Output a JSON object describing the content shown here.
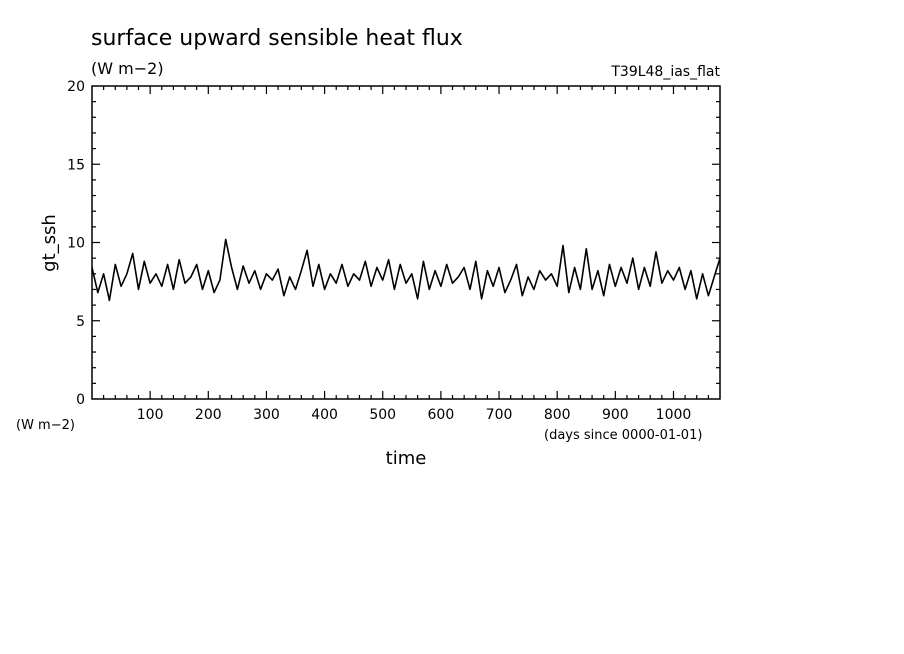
{
  "chart_data": {
    "type": "line",
    "title": "surface upward sensible heat flux",
    "subtitle": "(W m−2)",
    "run_label": "T39L48_ias_flat",
    "ylabel": "gt_ssh",
    "yunit": "(W m−2)",
    "xlabel": "time",
    "xunit": "(days since 0000-01-01)",
    "xlim": [
      0,
      1080
    ],
    "ylim": [
      0,
      20
    ],
    "x_major_ticks": [
      100,
      200,
      300,
      400,
      500,
      600,
      700,
      800,
      900,
      1000
    ],
    "x_tick_labels": [
      "100",
      "200",
      "300",
      "400",
      "500",
      "600",
      "700",
      "800",
      "900",
      "1000"
    ],
    "y_major_ticks": [
      0,
      5,
      10,
      15,
      20
    ],
    "y_tick_labels": [
      "0",
      "5",
      "10",
      "15",
      "20"
    ],
    "line_color": "#000000",
    "grid": false,
    "series": [
      {
        "x": [
          0,
          10,
          20,
          30,
          40,
          50,
          60,
          70,
          80,
          90,
          100,
          110,
          120,
          130,
          140,
          150,
          160,
          170,
          180,
          190,
          200,
          210,
          220,
          230,
          240,
          250,
          260,
          270,
          280,
          290,
          300,
          310,
          320,
          330,
          340,
          350,
          360,
          370,
          380,
          390,
          400,
          410,
          420,
          430,
          440,
          450,
          460,
          470,
          480,
          490,
          500,
          510,
          520,
          530,
          540,
          550,
          560,
          570,
          580,
          590,
          600,
          610,
          620,
          630,
          640,
          650,
          660,
          670,
          680,
          690,
          700,
          710,
          720,
          730,
          740,
          750,
          760,
          770,
          780,
          790,
          800,
          810,
          820,
          830,
          840,
          850,
          860,
          870,
          880,
          890,
          900,
          910,
          920,
          930,
          940,
          950,
          960,
          970,
          980,
          990,
          1000,
          1010,
          1020,
          1030,
          1040,
          1050,
          1060,
          1070,
          1080
        ],
        "values": [
          8.4,
          6.8,
          8.0,
          6.3,
          8.6,
          7.2,
          8.0,
          9.3,
          7.0,
          8.8,
          7.4,
          8.0,
          7.2,
          8.6,
          7.0,
          8.9,
          7.4,
          7.8,
          8.6,
          7.0,
          8.2,
          6.8,
          7.6,
          10.2,
          8.4,
          7.0,
          8.5,
          7.4,
          8.2,
          7.0,
          8.0,
          7.6,
          8.3,
          6.6,
          7.8,
          7.0,
          8.2,
          9.5,
          7.2,
          8.6,
          7.0,
          8.0,
          7.4,
          8.6,
          7.2,
          8.0,
          7.6,
          8.8,
          7.2,
          8.4,
          7.6,
          8.9,
          7.0,
          8.6,
          7.4,
          8.0,
          6.4,
          8.8,
          7.0,
          8.2,
          7.2,
          8.6,
          7.4,
          7.8,
          8.4,
          7.0,
          8.8,
          6.4,
          8.2,
          7.2,
          8.4,
          6.8,
          7.6,
          8.6,
          6.6,
          7.8,
          7.0,
          8.2,
          7.6,
          8.0,
          7.2,
          9.8,
          6.8,
          8.4,
          7.0,
          9.6,
          7.0,
          8.2,
          6.6,
          8.6,
          7.2,
          8.4,
          7.4,
          9.0,
          7.0,
          8.4,
          7.2,
          9.4,
          7.4,
          8.2,
          7.6,
          8.4,
          7.0,
          8.2,
          6.4,
          8.0,
          6.6,
          7.8,
          9.0
        ]
      }
    ]
  }
}
